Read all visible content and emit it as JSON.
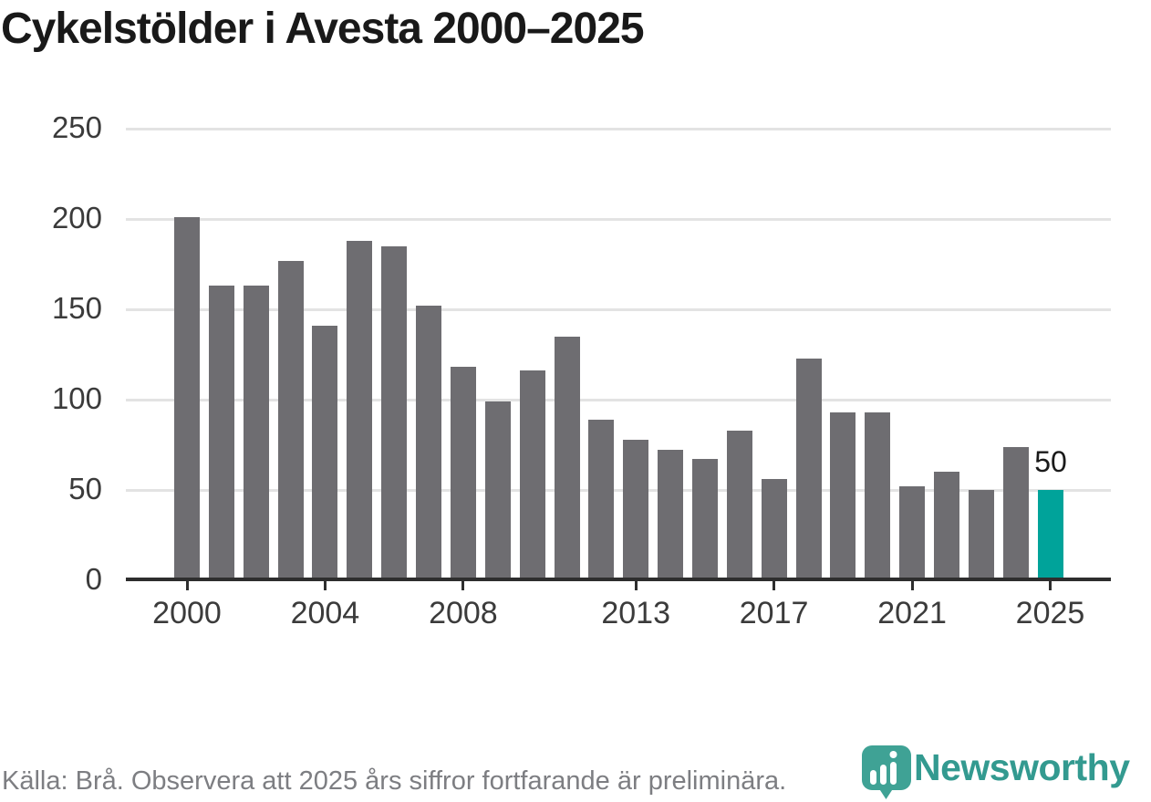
{
  "title": "Cykelstölder i Avesta 2000–2025",
  "chart_data": {
    "type": "bar",
    "title": "Cykelstölder i Avesta 2000–2025",
    "xlabel": "",
    "ylabel": "",
    "ylim": [
      0,
      250
    ],
    "grid": "horizontal",
    "legend": "none",
    "x": [
      2000,
      2001,
      2002,
      2003,
      2004,
      2005,
      2006,
      2007,
      2008,
      2009,
      2010,
      2011,
      2012,
      2013,
      2014,
      2015,
      2016,
      2017,
      2018,
      2019,
      2020,
      2021,
      2022,
      2023,
      2024,
      2025
    ],
    "values": [
      201,
      163,
      163,
      177,
      141,
      188,
      185,
      152,
      118,
      99,
      116,
      135,
      89,
      78,
      72,
      67,
      83,
      56,
      123,
      93,
      93,
      52,
      60,
      50,
      74,
      50
    ],
    "y_ticks": [
      0,
      50,
      100,
      150,
      200,
      250
    ],
    "x_tick_years": [
      2000,
      2004,
      2008,
      2013,
      2017,
      2021,
      2025
    ],
    "highlight_x": 2025,
    "bar_color": "#6e6d71",
    "highlight_color": "#00a39a",
    "annotation": {
      "text": "50",
      "x": 2025,
      "y": 50
    }
  },
  "footer": {
    "source_text": "Källa: Brå. Observera att 2025 års siffror fortfarande är preliminära.",
    "logo_text": "Newsworthy"
  },
  "colors": {
    "grid": "#e3e3e3",
    "axis": "#2e2e2e",
    "tick_text": "#3b3b3b",
    "title_text": "#191919",
    "source_text": "#7d7e82",
    "logo_teal": "#3fa295",
    "logo_wordmark": "#339a90"
  }
}
